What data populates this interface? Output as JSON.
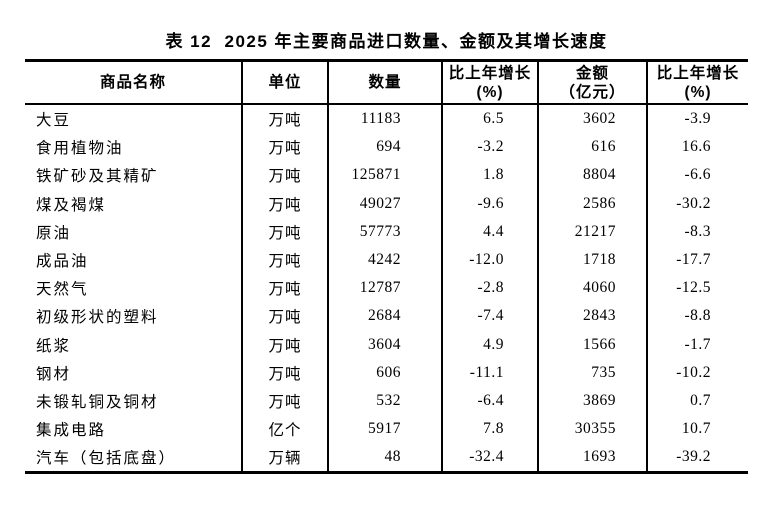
{
  "title": "表 12  2025 年主要商品进口数量、金额及其增长速度",
  "colors": {
    "text": "#000000",
    "background": "#ffffff",
    "border": "#000000"
  },
  "table": {
    "columns": [
      {
        "label": "商品名称",
        "sub": ""
      },
      {
        "label": "单位",
        "sub": ""
      },
      {
        "label": "数量",
        "sub": ""
      },
      {
        "label": "比上年增长",
        "sub": "(%)"
      },
      {
        "label": "金额",
        "sub": "（亿元）"
      },
      {
        "label": "比上年增长",
        "sub": "(%)"
      }
    ],
    "rows": [
      {
        "name": "大豆",
        "unit": "万吨",
        "quantity": "11183",
        "quantity_growth": "6.5",
        "value": "3602",
        "value_growth": "-3.9"
      },
      {
        "name": "食用植物油",
        "unit": "万吨",
        "quantity": "694",
        "quantity_growth": "-3.2",
        "value": "616",
        "value_growth": "16.6"
      },
      {
        "name": "铁矿砂及其精矿",
        "unit": "万吨",
        "quantity": "125871",
        "quantity_growth": "1.8",
        "value": "8804",
        "value_growth": "-6.6"
      },
      {
        "name": "煤及褐煤",
        "unit": "万吨",
        "quantity": "49027",
        "quantity_growth": "-9.6",
        "value": "2586",
        "value_growth": "-30.2"
      },
      {
        "name": "原油",
        "unit": "万吨",
        "quantity": "57773",
        "quantity_growth": "4.4",
        "value": "21217",
        "value_growth": "-8.3"
      },
      {
        "name": "成品油",
        "unit": "万吨",
        "quantity": "4242",
        "quantity_growth": "-12.0",
        "value": "1718",
        "value_growth": "-17.7"
      },
      {
        "name": "天然气",
        "unit": "万吨",
        "quantity": "12787",
        "quantity_growth": "-2.8",
        "value": "4060",
        "value_growth": "-12.5"
      },
      {
        "name": "初级形状的塑料",
        "unit": "万吨",
        "quantity": "2684",
        "quantity_growth": "-7.4",
        "value": "2843",
        "value_growth": "-8.8"
      },
      {
        "name": "纸浆",
        "unit": "万吨",
        "quantity": "3604",
        "quantity_growth": "4.9",
        "value": "1566",
        "value_growth": "-1.7"
      },
      {
        "name": "钢材",
        "unit": "万吨",
        "quantity": "606",
        "quantity_growth": "-11.1",
        "value": "735",
        "value_growth": "-10.2"
      },
      {
        "name": "未锻轧铜及铜材",
        "unit": "万吨",
        "quantity": "532",
        "quantity_growth": "-6.4",
        "value": "3869",
        "value_growth": "0.7"
      },
      {
        "name": "集成电路",
        "unit": "亿个",
        "quantity": "5917",
        "quantity_growth": "7.8",
        "value": "30355",
        "value_growth": "10.7"
      },
      {
        "name": "汽车（包括底盘）",
        "unit": "万辆",
        "quantity": "48",
        "quantity_growth": "-32.4",
        "value": "1693",
        "value_growth": "-39.2"
      }
    ]
  }
}
